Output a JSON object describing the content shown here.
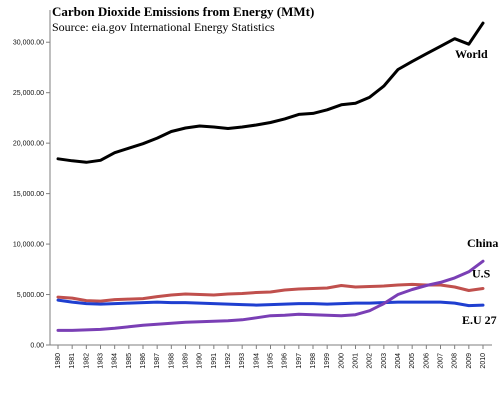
{
  "chart_data": {
    "type": "line",
    "title": "Carbon Dioxide Emissions from Energy (MMt)",
    "subtitle": "Source: eia.gov International Energy Statistics",
    "xlabel": "",
    "ylabel": "",
    "ylim": [
      0,
      32500
    ],
    "yticks": [
      "0.00",
      "5,000.00",
      "10,000.00",
      "15,000.00",
      "20,000.00",
      "25,000.00",
      "30,000.00"
    ],
    "categories": [
      "1980",
      "1981",
      "1982",
      "1983",
      "1984",
      "1985",
      "1986",
      "1987",
      "1988",
      "1989",
      "1990",
      "1991",
      "1992",
      "1993",
      "1994",
      "1995",
      "1996",
      "1997",
      "1998",
      "1999",
      "2000",
      "2001",
      "2002",
      "2003",
      "2004",
      "2005",
      "2006",
      "2007",
      "2008",
      "2009",
      "2010"
    ],
    "grid": false,
    "legend": "inline labels at line ends",
    "series": [
      {
        "name": "World",
        "color": "#000000",
        "values": [
          18450,
          18250,
          18100,
          18300,
          19050,
          19500,
          19950,
          20500,
          21150,
          21500,
          21700,
          21600,
          21450,
          21600,
          21800,
          22050,
          22400,
          22850,
          22950,
          23300,
          23800,
          23950,
          24550,
          25650,
          27300,
          28100,
          28850,
          29600,
          30350,
          29800,
          31900
        ]
      },
      {
        "name": "U.S",
        "color": "#c0504d",
        "values": [
          4750,
          4650,
          4400,
          4350,
          4500,
          4550,
          4600,
          4800,
          4950,
          5050,
          5000,
          4950,
          5050,
          5100,
          5200,
          5250,
          5450,
          5550,
          5600,
          5650,
          5900,
          5750,
          5800,
          5850,
          5950,
          6000,
          5950,
          5950,
          5750,
          5400,
          5600
        ]
      },
      {
        "name": "E.U 27",
        "color": "#1f3fd0",
        "values": [
          4450,
          4250,
          4100,
          4050,
          4100,
          4150,
          4200,
          4250,
          4200,
          4200,
          4150,
          4100,
          4050,
          4000,
          3950,
          4000,
          4050,
          4100,
          4100,
          4050,
          4100,
          4150,
          4150,
          4200,
          4250,
          4250,
          4250,
          4250,
          4150,
          3900,
          3950
        ]
      },
      {
        "name": "China",
        "color": "#7a3fb5",
        "values": [
          1450,
          1450,
          1500,
          1550,
          1650,
          1800,
          1950,
          2050,
          2150,
          2250,
          2300,
          2350,
          2400,
          2500,
          2700,
          2900,
          2950,
          3050,
          3000,
          2950,
          2900,
          3000,
          3400,
          4100,
          5000,
          5500,
          5900,
          6200,
          6650,
          7250,
          8300
        ]
      }
    ]
  }
}
